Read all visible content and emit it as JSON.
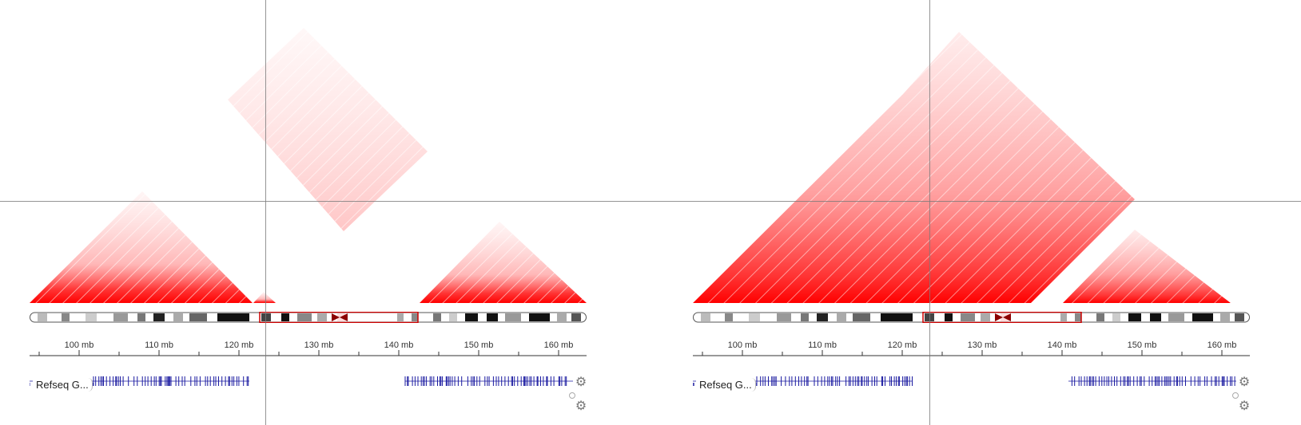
{
  "panels": [
    {
      "id": "left",
      "track_label": "Refseq G...",
      "ruler_ticks": [
        "100 mb",
        "110 mb",
        "120 mb",
        "130 mb",
        "140 mb",
        "150 mb",
        "160 mb"
      ]
    },
    {
      "id": "right",
      "track_label": "Refseq G...",
      "ruler_ticks": [
        "100 mb",
        "110 mb",
        "120 mb",
        "130 mb",
        "140 mb",
        "150 mb",
        "160 mb"
      ]
    }
  ],
  "colors": {
    "contact": "#ff0000",
    "gene": "#1a1aa0",
    "crosshair": "#7a7a7a",
    "ideogram_highlight": "#cc0000"
  },
  "icons": {
    "settings": "gear-icon"
  }
}
